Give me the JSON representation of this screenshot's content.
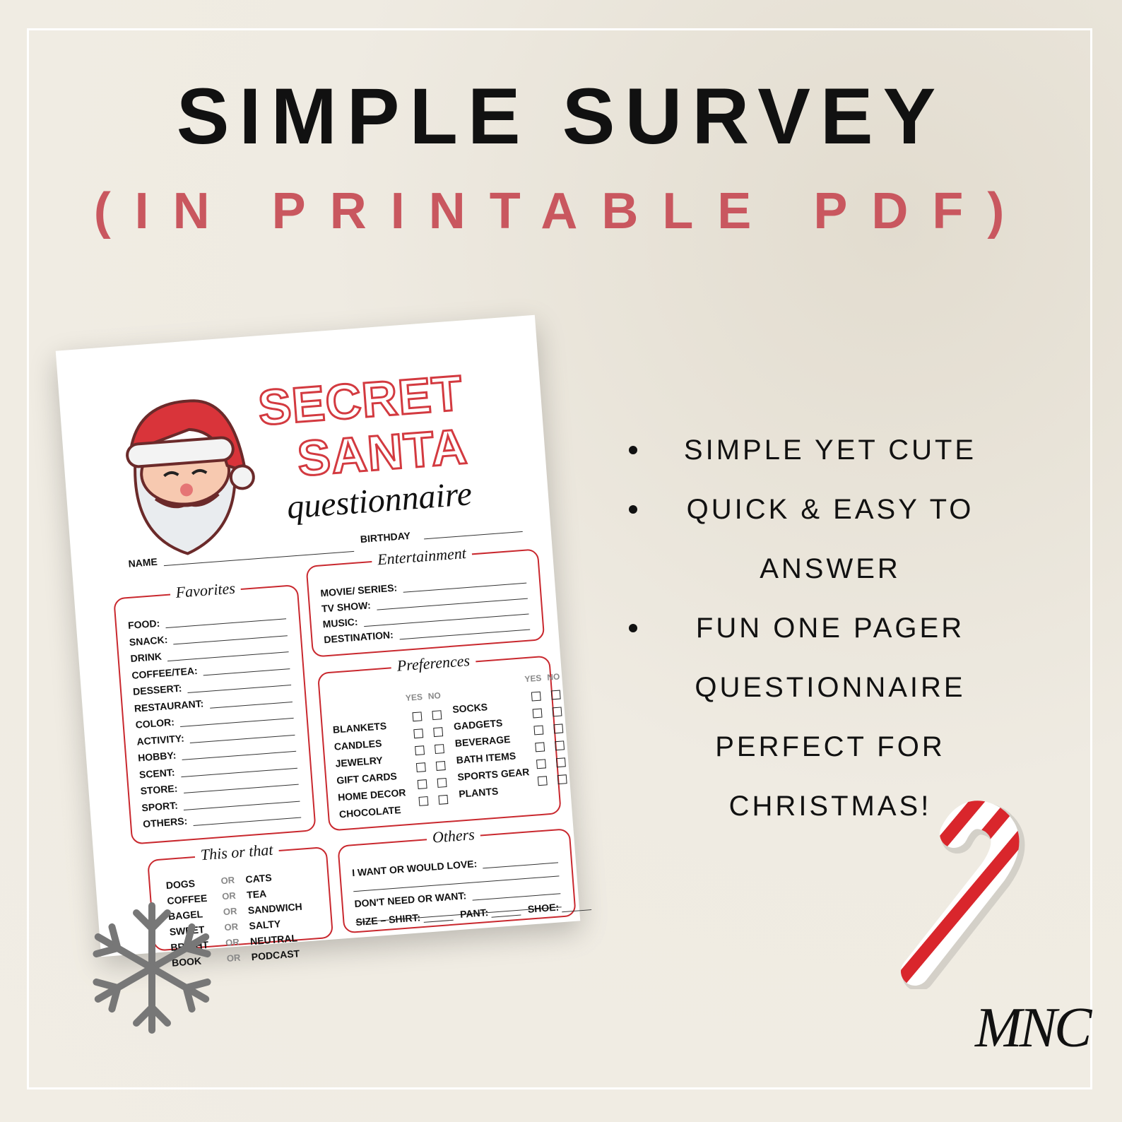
{
  "header": {
    "title": "SIMPLE SURVEY",
    "subtitle": "(IN PRINTABLE PDF)"
  },
  "bullets": [
    "SIMPLE YET CUTE",
    "QUICK & EASY TO ANSWER",
    "FUN ONE PAGER QUESTIONNAIRE PERFECT FOR CHRISTMAS!"
  ],
  "worksheet": {
    "title_1": "SECRET",
    "title_2": "SANTA",
    "title_3": "questionnaire",
    "name": "NAME",
    "birthday": "BIRTHDAY",
    "favorites": {
      "title": "Favorites",
      "items": [
        "FOOD:",
        "SNACK:",
        "DRINK",
        "COFFEE/TEA:",
        "DESSERT:",
        "RESTAURANT:",
        "COLOR:",
        "ACTIVITY:",
        "HOBBY:",
        "SCENT:",
        "STORE:",
        "SPORT:",
        "OTHERS:"
      ]
    },
    "entertainment": {
      "title": "Entertainment",
      "items": [
        "MOVIE/ SERIES:",
        "TV SHOW:",
        "MUSIC:",
        "DESTINATION:"
      ]
    },
    "preferences": {
      "title": "Preferences",
      "yes": "YES",
      "no": "NO",
      "left": [
        "BLANKETS",
        "CANDLES",
        "JEWELRY",
        "GIFT CARDS",
        "HOME DECOR",
        "CHOCOLATE"
      ],
      "right": [
        "SOCKS",
        "GADGETS",
        "BEVERAGE",
        "BATH ITEMS",
        "SPORTS GEAR",
        "PLANTS"
      ]
    },
    "this_or_that": {
      "title": "This or that",
      "or": "OR",
      "pairs": [
        [
          "DOGS",
          "CATS"
        ],
        [
          "COFFEE",
          "TEA"
        ],
        [
          "BAGEL",
          "SANDWICH"
        ],
        [
          "SWEET",
          "SALTY"
        ],
        [
          "BRIGHT",
          "NEUTRAL"
        ],
        [
          "BOOK",
          "PODCAST"
        ]
      ]
    },
    "others": {
      "title": "Others",
      "lines": [
        "I WANT OR WOULD LOVE:",
        "DON'T NEED OR WANT:"
      ],
      "sizes": [
        "SIZE – SHIRT:",
        "PANT:",
        "SHOE:"
      ]
    }
  },
  "signature": "MNC"
}
